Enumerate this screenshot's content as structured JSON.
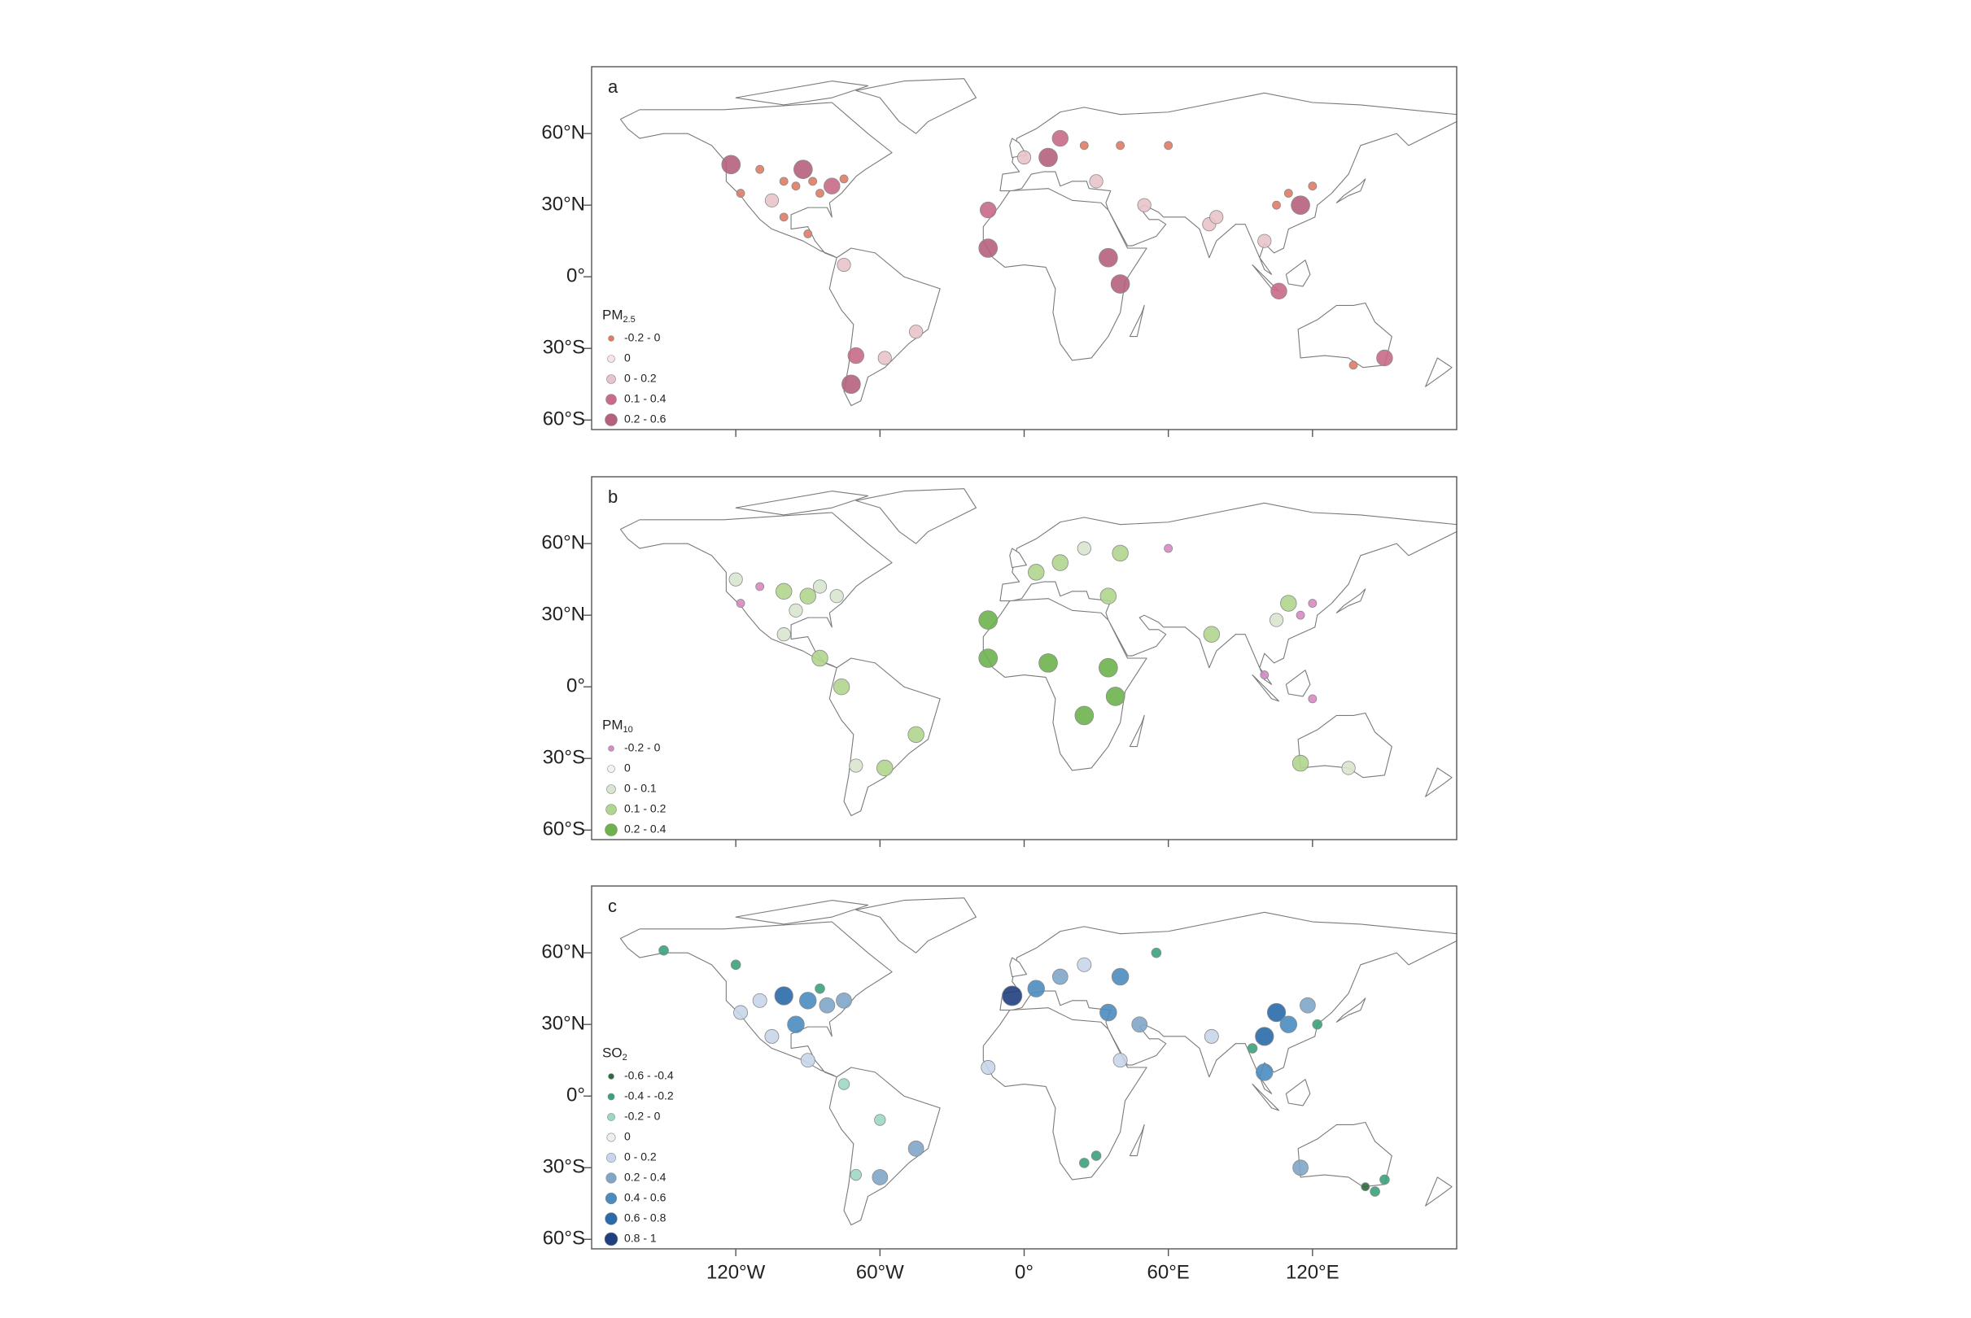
{
  "xlim": [
    -180,
    180
  ],
  "ylim": [
    -64,
    88
  ],
  "xticks": [
    {
      "value": -120,
      "label": "120°W"
    },
    {
      "value": -60,
      "label": "60°W"
    },
    {
      "value": 0,
      "label": "0°"
    },
    {
      "value": 60,
      "label": "60°E"
    },
    {
      "value": 120,
      "label": "120°E"
    }
  ],
  "yticks": [
    {
      "value": 60,
      "label": "60°N"
    },
    {
      "value": 30,
      "label": "30°N"
    },
    {
      "value": 0,
      "label": "0°"
    },
    {
      "value": -30,
      "label": "30°S"
    },
    {
      "value": -60,
      "label": "60°S"
    }
  ],
  "panels": [
    {
      "label": "a",
      "legend": {
        "title": "PM",
        "subscript": "2.5",
        "items": [
          {
            "label": "-0.2 - 0",
            "color": "#e07b64"
          },
          {
            "label": "0",
            "color": "#f7e4e4"
          },
          {
            "label": "0 - 0.2",
            "color": "#e8c4ca"
          },
          {
            "label": "0.1 - 0.4",
            "color": "#c96a88"
          },
          {
            "label": "0.2 - 0.6",
            "color": "#b5607d"
          }
        ]
      },
      "sites": [
        [
          -100,
          40,
          0
        ],
        [
          -95,
          38,
          0
        ],
        [
          -88,
          40,
          0
        ],
        [
          -85,
          35,
          0
        ],
        [
          -80,
          38,
          3
        ],
        [
          -75,
          41,
          0
        ],
        [
          -110,
          45,
          0
        ],
        [
          -118,
          35,
          0
        ],
        [
          -122,
          47,
          4
        ],
        [
          -105,
          32,
          2
        ],
        [
          -92,
          45,
          4
        ],
        [
          -100,
          25,
          0
        ],
        [
          -90,
          18,
          0
        ],
        [
          -75,
          5,
          2
        ],
        [
          -70,
          -33,
          3
        ],
        [
          -72,
          -45,
          4
        ],
        [
          -58,
          -34,
          2
        ],
        [
          -45,
          -23,
          2
        ],
        [
          0,
          50,
          2
        ],
        [
          10,
          50,
          4
        ],
        [
          15,
          58,
          3
        ],
        [
          25,
          55,
          0
        ],
        [
          40,
          55,
          0
        ],
        [
          60,
          55,
          0
        ],
        [
          30,
          40,
          2
        ],
        [
          50,
          30,
          2
        ],
        [
          -15,
          28,
          3
        ],
        [
          -15,
          12,
          4
        ],
        [
          35,
          8,
          4
        ],
        [
          40,
          -3,
          4
        ],
        [
          110,
          35,
          0
        ],
        [
          115,
          30,
          4
        ],
        [
          105,
          30,
          0
        ],
        [
          120,
          38,
          0
        ],
        [
          77,
          22,
          2
        ],
        [
          80,
          25,
          2
        ],
        [
          100,
          15,
          2
        ],
        [
          106,
          -6,
          3
        ],
        [
          150,
          -34,
          3
        ],
        [
          137,
          -37,
          0
        ]
      ]
    },
    {
      "label": "b",
      "legend": {
        "title": "PM",
        "subscript": "10",
        "items": [
          {
            "label": "-0.2 - 0",
            "color": "#d98ac3"
          },
          {
            "label": "0",
            "color": "#f2f2ee"
          },
          {
            "label": "0 - 0.1",
            "color": "#d9e6cf"
          },
          {
            "label": "0.1 - 0.2",
            "color": "#b0d58d"
          },
          {
            "label": "0.2 - 0.4",
            "color": "#6db24c"
          }
        ]
      },
      "sites": [
        [
          -110,
          42,
          0
        ],
        [
          -100,
          40,
          3
        ],
        [
          -90,
          38,
          3
        ],
        [
          -85,
          42,
          2
        ],
        [
          -78,
          38,
          2
        ],
        [
          -95,
          32,
          2
        ],
        [
          -118,
          35,
          0
        ],
        [
          -120,
          45,
          2
        ],
        [
          -100,
          22,
          2
        ],
        [
          -85,
          12,
          3
        ],
        [
          -70,
          -33,
          2
        ],
        [
          -58,
          -34,
          3
        ],
        [
          -45,
          -20,
          3
        ],
        [
          -76,
          0,
          3
        ],
        [
          5,
          48,
          3
        ],
        [
          15,
          52,
          3
        ],
        [
          25,
          58,
          2
        ],
        [
          40,
          56,
          3
        ],
        [
          60,
          58,
          0
        ],
        [
          35,
          38,
          3
        ],
        [
          -15,
          28,
          4
        ],
        [
          -15,
          12,
          4
        ],
        [
          10,
          10,
          4
        ],
        [
          35,
          8,
          4
        ],
        [
          38,
          -4,
          4
        ],
        [
          25,
          -12,
          4
        ],
        [
          110,
          35,
          3
        ],
        [
          115,
          30,
          0
        ],
        [
          120,
          35,
          0
        ],
        [
          105,
          28,
          2
        ],
        [
          78,
          22,
          3
        ],
        [
          100,
          5,
          0
        ],
        [
          120,
          -5,
          0
        ],
        [
          115,
          -32,
          3
        ],
        [
          135,
          -34,
          2
        ]
      ]
    },
    {
      "label": "c",
      "legend": {
        "title": "SO",
        "subscript": "2",
        "items": [
          {
            "label": "-0.6 - -0.4",
            "color": "#2d6a3e"
          },
          {
            "label": "-0.4 - -0.2",
            "color": "#3aa27a"
          },
          {
            "label": "-0.2 - 0",
            "color": "#9dd8c4"
          },
          {
            "label": "0",
            "color": "#eeeeee"
          },
          {
            "label": "0 - 0.2",
            "color": "#c7d6ea"
          },
          {
            "label": "0.2 - 0.4",
            "color": "#7fa6c8"
          },
          {
            "label": "0.4 - 0.6",
            "color": "#4a8cc0"
          },
          {
            "label": "0.6 - 0.8",
            "color": "#2a6aa8"
          },
          {
            "label": "0.8 - 1",
            "color": "#1f3f7f"
          }
        ]
      },
      "sites": [
        [
          -100,
          42,
          7
        ],
        [
          -90,
          40,
          6
        ],
        [
          -82,
          38,
          5
        ],
        [
          -110,
          40,
          4
        ],
        [
          -118,
          35,
          4
        ],
        [
          -95,
          30,
          6
        ],
        [
          -105,
          25,
          4
        ],
        [
          -120,
          55,
          1
        ],
        [
          -150,
          61,
          1
        ],
        [
          -85,
          45,
          1
        ],
        [
          -75,
          40,
          5
        ],
        [
          -90,
          15,
          4
        ],
        [
          -75,
          5,
          2
        ],
        [
          -60,
          -10,
          2
        ],
        [
          -45,
          -22,
          5
        ],
        [
          -60,
          -34,
          5
        ],
        [
          -70,
          -33,
          2
        ],
        [
          -5,
          42,
          8
        ],
        [
          5,
          45,
          6
        ],
        [
          15,
          50,
          5
        ],
        [
          25,
          55,
          4
        ],
        [
          40,
          50,
          6
        ],
        [
          55,
          60,
          1
        ],
        [
          35,
          35,
          6
        ],
        [
          48,
          30,
          5
        ],
        [
          -15,
          12,
          4
        ],
        [
          30,
          -25,
          1
        ],
        [
          25,
          -28,
          1
        ],
        [
          40,
          15,
          4
        ],
        [
          105,
          35,
          7
        ],
        [
          110,
          30,
          6
        ],
        [
          100,
          25,
          7
        ],
        [
          118,
          38,
          5
        ],
        [
          122,
          30,
          1
        ],
        [
          78,
          25,
          4
        ],
        [
          95,
          20,
          1
        ],
        [
          100,
          10,
          6
        ],
        [
          115,
          -30,
          5
        ],
        [
          142,
          -38,
          0
        ],
        [
          146,
          -40,
          1
        ],
        [
          150,
          -35,
          1
        ]
      ]
    }
  ]
}
